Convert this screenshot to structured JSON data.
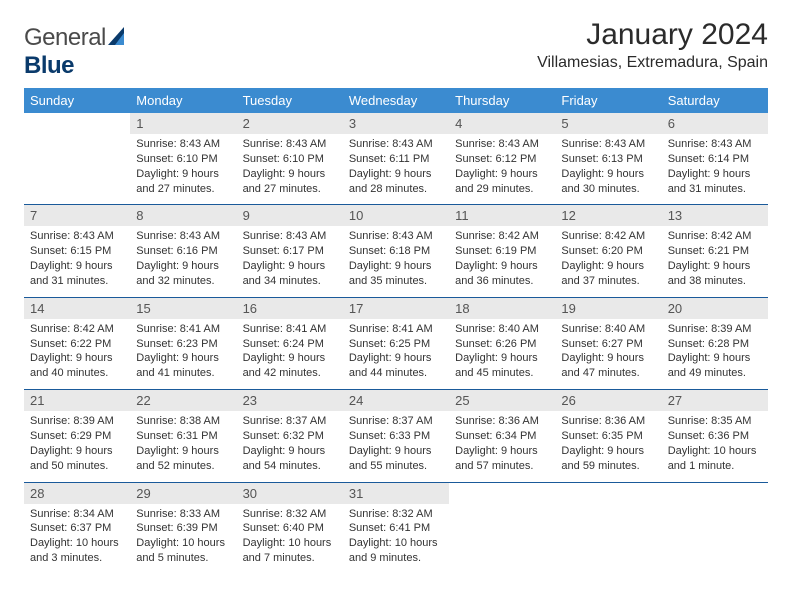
{
  "logo": {
    "word1": "General",
    "word2": "Blue"
  },
  "title": "January 2024",
  "location": "Villamesias, Extremadura, Spain",
  "colors": {
    "header_bg": "#3b8bd0",
    "header_text": "#ffffff",
    "daynum_bg": "#e9e9e9",
    "rule": "#1a5a9a",
    "logo_dark": "#0a3a6b"
  },
  "daysOfWeek": [
    "Sunday",
    "Monday",
    "Tuesday",
    "Wednesday",
    "Thursday",
    "Friday",
    "Saturday"
  ],
  "weeks": [
    [
      null,
      {
        "n": "1",
        "sr": "8:43 AM",
        "ss": "6:10 PM",
        "dl": "9 hours and 27 minutes."
      },
      {
        "n": "2",
        "sr": "8:43 AM",
        "ss": "6:10 PM",
        "dl": "9 hours and 27 minutes."
      },
      {
        "n": "3",
        "sr": "8:43 AM",
        "ss": "6:11 PM",
        "dl": "9 hours and 28 minutes."
      },
      {
        "n": "4",
        "sr": "8:43 AM",
        "ss": "6:12 PM",
        "dl": "9 hours and 29 minutes."
      },
      {
        "n": "5",
        "sr": "8:43 AM",
        "ss": "6:13 PM",
        "dl": "9 hours and 30 minutes."
      },
      {
        "n": "6",
        "sr": "8:43 AM",
        "ss": "6:14 PM",
        "dl": "9 hours and 31 minutes."
      }
    ],
    [
      {
        "n": "7",
        "sr": "8:43 AM",
        "ss": "6:15 PM",
        "dl": "9 hours and 31 minutes."
      },
      {
        "n": "8",
        "sr": "8:43 AM",
        "ss": "6:16 PM",
        "dl": "9 hours and 32 minutes."
      },
      {
        "n": "9",
        "sr": "8:43 AM",
        "ss": "6:17 PM",
        "dl": "9 hours and 34 minutes."
      },
      {
        "n": "10",
        "sr": "8:43 AM",
        "ss": "6:18 PM",
        "dl": "9 hours and 35 minutes."
      },
      {
        "n": "11",
        "sr": "8:42 AM",
        "ss": "6:19 PM",
        "dl": "9 hours and 36 minutes."
      },
      {
        "n": "12",
        "sr": "8:42 AM",
        "ss": "6:20 PM",
        "dl": "9 hours and 37 minutes."
      },
      {
        "n": "13",
        "sr": "8:42 AM",
        "ss": "6:21 PM",
        "dl": "9 hours and 38 minutes."
      }
    ],
    [
      {
        "n": "14",
        "sr": "8:42 AM",
        "ss": "6:22 PM",
        "dl": "9 hours and 40 minutes."
      },
      {
        "n": "15",
        "sr": "8:41 AM",
        "ss": "6:23 PM",
        "dl": "9 hours and 41 minutes."
      },
      {
        "n": "16",
        "sr": "8:41 AM",
        "ss": "6:24 PM",
        "dl": "9 hours and 42 minutes."
      },
      {
        "n": "17",
        "sr": "8:41 AM",
        "ss": "6:25 PM",
        "dl": "9 hours and 44 minutes."
      },
      {
        "n": "18",
        "sr": "8:40 AM",
        "ss": "6:26 PM",
        "dl": "9 hours and 45 minutes."
      },
      {
        "n": "19",
        "sr": "8:40 AM",
        "ss": "6:27 PM",
        "dl": "9 hours and 47 minutes."
      },
      {
        "n": "20",
        "sr": "8:39 AM",
        "ss": "6:28 PM",
        "dl": "9 hours and 49 minutes."
      }
    ],
    [
      {
        "n": "21",
        "sr": "8:39 AM",
        "ss": "6:29 PM",
        "dl": "9 hours and 50 minutes."
      },
      {
        "n": "22",
        "sr": "8:38 AM",
        "ss": "6:31 PM",
        "dl": "9 hours and 52 minutes."
      },
      {
        "n": "23",
        "sr": "8:37 AM",
        "ss": "6:32 PM",
        "dl": "9 hours and 54 minutes."
      },
      {
        "n": "24",
        "sr": "8:37 AM",
        "ss": "6:33 PM",
        "dl": "9 hours and 55 minutes."
      },
      {
        "n": "25",
        "sr": "8:36 AM",
        "ss": "6:34 PM",
        "dl": "9 hours and 57 minutes."
      },
      {
        "n": "26",
        "sr": "8:36 AM",
        "ss": "6:35 PM",
        "dl": "9 hours and 59 minutes."
      },
      {
        "n": "27",
        "sr": "8:35 AM",
        "ss": "6:36 PM",
        "dl": "10 hours and 1 minute."
      }
    ],
    [
      {
        "n": "28",
        "sr": "8:34 AM",
        "ss": "6:37 PM",
        "dl": "10 hours and 3 minutes."
      },
      {
        "n": "29",
        "sr": "8:33 AM",
        "ss": "6:39 PM",
        "dl": "10 hours and 5 minutes."
      },
      {
        "n": "30",
        "sr": "8:32 AM",
        "ss": "6:40 PM",
        "dl": "10 hours and 7 minutes."
      },
      {
        "n": "31",
        "sr": "8:32 AM",
        "ss": "6:41 PM",
        "dl": "10 hours and 9 minutes."
      },
      null,
      null,
      null
    ]
  ],
  "labels": {
    "sunrise": "Sunrise:",
    "sunset": "Sunset:",
    "daylight": "Daylight:"
  }
}
